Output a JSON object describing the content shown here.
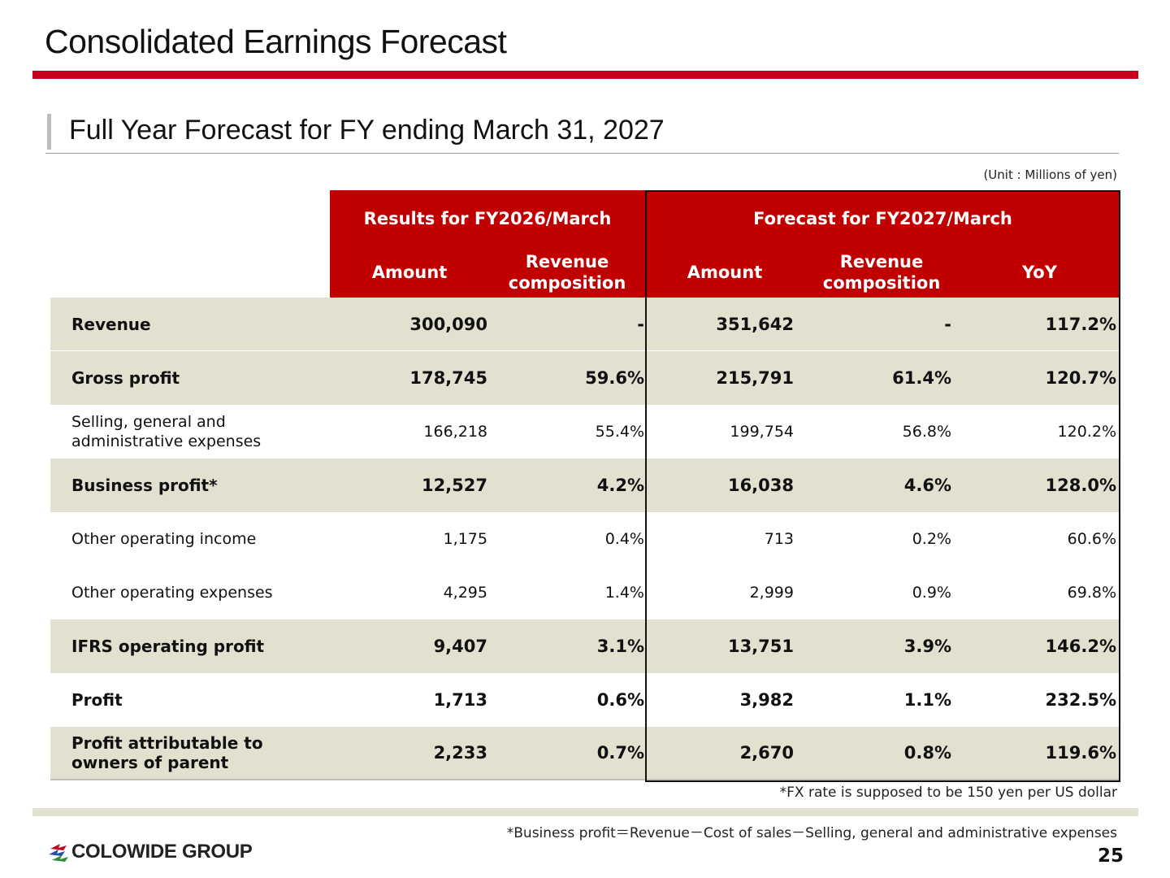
{
  "header": {
    "title": "Consolidated Earnings Forecast",
    "subtitle": "Full Year Forecast for FY ending March 31, 2027",
    "unit_note": "(Unit : Millions of yen)"
  },
  "table": {
    "group_results": "Results for FY2026/March",
    "group_forecast": "Forecast for FY2027/March",
    "col_amount": "Amount",
    "col_revenue_composition": "Revenue composition",
    "col_yoy": "YoY",
    "rows": [
      {
        "label": "Revenue",
        "r_amount": "300,090",
        "r_comp": "-",
        "f_amount": "351,642",
        "f_comp": "-",
        "yoy": "117.2%"
      },
      {
        "label": "Gross profit",
        "r_amount": "178,745",
        "r_comp": "59.6%",
        "f_amount": "215,791",
        "f_comp": "61.4%",
        "yoy": "120.7%"
      },
      {
        "label": "Selling, general and administrative expenses",
        "r_amount": "166,218",
        "r_comp": "55.4%",
        "f_amount": "199,754",
        "f_comp": "56.8%",
        "yoy": "120.2%"
      },
      {
        "label": "Business profit*",
        "r_amount": "12,527",
        "r_comp": "4.2%",
        "f_amount": "16,038",
        "f_comp": "4.6%",
        "yoy": "128.0%"
      },
      {
        "label": "Other operating income",
        "r_amount": "1,175",
        "r_comp": "0.4%",
        "f_amount": "713",
        "f_comp": "0.2%",
        "yoy": "60.6%"
      },
      {
        "label": "Other operating expenses",
        "r_amount": "4,295",
        "r_comp": "1.4%",
        "f_amount": "2,999",
        "f_comp": "0.9%",
        "yoy": "69.8%"
      },
      {
        "label": "IFRS operating profit",
        "r_amount": "9,407",
        "r_comp": "3.1%",
        "f_amount": "13,751",
        "f_comp": "3.9%",
        "yoy": "146.2%"
      },
      {
        "label": "Profit",
        "r_amount": "1,713",
        "r_comp": "0.6%",
        "f_amount": "3,982",
        "f_comp": "1.1%",
        "yoy": "232.5%"
      },
      {
        "label": "Profit attributable to owners of parent",
        "r_amount": "2,233",
        "r_comp": "0.7%",
        "f_amount": "2,670",
        "f_comp": "0.8%",
        "yoy": "119.6%"
      }
    ]
  },
  "notes": {
    "fx": "*FX rate is supposed to be 150 yen per US dollar",
    "business_profit": "*Business profit＝Revenue－Cost of sales－Selling, general and administrative expenses"
  },
  "footer": {
    "logo_text": "COLOWIDE GROUP",
    "logo_icon": "colowide-logo-icon",
    "page_number": "25"
  },
  "colors": {
    "accent_red": "#c8001e",
    "header_red": "#c00000",
    "row_shade": "#e2e0cf"
  }
}
